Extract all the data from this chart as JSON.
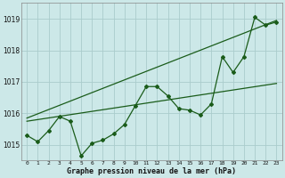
{
  "title": "Graphe pression niveau de la mer (hPa)",
  "xlabel_ticks": [
    0,
    1,
    2,
    3,
    4,
    5,
    6,
    7,
    8,
    9,
    10,
    11,
    12,
    13,
    14,
    15,
    16,
    17,
    18,
    19,
    20,
    21,
    22,
    23
  ],
  "ylim": [
    1014.5,
    1019.5
  ],
  "yticks": [
    1015,
    1016,
    1017,
    1018,
    1019
  ],
  "bg_color": "#cce8e8",
  "grid_color": "#aacccc",
  "line_color": "#1a5c1a",
  "main_x": [
    0,
    1,
    2,
    3,
    4,
    5,
    6,
    7,
    8,
    9,
    10,
    11,
    12,
    13,
    14,
    15,
    16,
    17,
    18,
    19,
    20,
    21,
    22,
    23
  ],
  "main_y": [
    1015.3,
    1015.1,
    1015.45,
    1015.9,
    1015.75,
    1014.65,
    1015.05,
    1015.15,
    1015.35,
    1015.65,
    1016.25,
    1016.85,
    1016.85,
    1016.55,
    1016.15,
    1016.1,
    1015.95,
    1016.3,
    1017.8,
    1017.3,
    1017.8,
    1019.05,
    1018.8,
    1018.9
  ],
  "trend1_x": [
    0,
    23
  ],
  "trend1_y": [
    1015.75,
    1016.95
  ],
  "trend2_x": [
    0,
    23
  ],
  "trend2_y": [
    1015.85,
    1018.95
  ]
}
